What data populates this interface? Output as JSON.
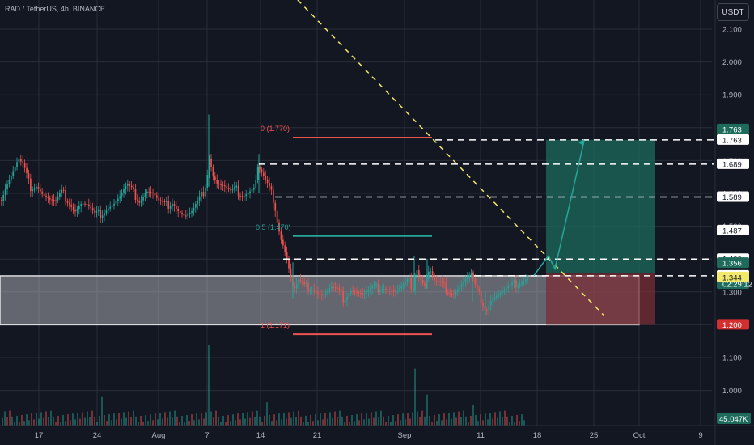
{
  "header": {
    "symbol": "RAD / TetherUS, 4h, BINANCE",
    "currency": "USDT"
  },
  "colors": {
    "background": "#131722",
    "grid": "#2a2e39",
    "up": "#26a69a",
    "down": "#ef5350",
    "zone": "#d1d4dc",
    "trend": "#f2e86b",
    "target": "#1e6b5c",
    "stop": "#7a2d36"
  },
  "chart_data": {
    "type": "candlestick",
    "y_range": [
      0.95,
      2.16
    ],
    "y_ticks": [
      "2.100",
      "2.000",
      "1.900",
      "1.800",
      "1.700",
      "1.600",
      "1.500",
      "1.400",
      "1.300",
      "1.200",
      "1.100",
      "1.000"
    ],
    "y_tick_values": [
      2.1,
      2.0,
      1.9,
      1.8,
      1.7,
      1.6,
      1.5,
      1.4,
      1.3,
      1.2,
      1.1,
      1.0
    ],
    "x_labels": [
      "17",
      "24",
      "Aug",
      "7",
      "14",
      "21",
      "Sep",
      "11",
      "18",
      "25",
      "Oct",
      "9"
    ],
    "price_path": [
      [
        0,
        1.58
      ],
      [
        6,
        1.62
      ],
      [
        14,
        1.66
      ],
      [
        22,
        1.7
      ],
      [
        28,
        1.68
      ],
      [
        36,
        1.62
      ],
      [
        44,
        1.63
      ],
      [
        52,
        1.6
      ],
      [
        60,
        1.58
      ],
      [
        68,
        1.57
      ],
      [
        76,
        1.6
      ],
      [
        84,
        1.58
      ],
      [
        92,
        1.55
      ],
      [
        100,
        1.57
      ],
      [
        108,
        1.56
      ],
      [
        116,
        1.53
      ],
      [
        124,
        1.54
      ],
      [
        132,
        1.56
      ],
      [
        140,
        1.57
      ],
      [
        148,
        1.59
      ],
      [
        156,
        1.62
      ],
      [
        164,
        1.6
      ],
      [
        172,
        1.58
      ],
      [
        180,
        1.61
      ],
      [
        188,
        1.6
      ],
      [
        196,
        1.57
      ],
      [
        204,
        1.56
      ],
      [
        212,
        1.58
      ],
      [
        220,
        1.55
      ],
      [
        228,
        1.53
      ],
      [
        236,
        1.54
      ],
      [
        244,
        1.57
      ],
      [
        250,
        1.6
      ],
      [
        254,
        1.64
      ],
      [
        258,
        1.72
      ],
      [
        262,
        1.66
      ],
      [
        268,
        1.63
      ],
      [
        276,
        1.62
      ],
      [
        284,
        1.6
      ],
      [
        292,
        1.61
      ],
      [
        300,
        1.6
      ],
      [
        308,
        1.61
      ],
      [
        314,
        1.62
      ],
      [
        318,
        1.68
      ],
      [
        322,
        1.66
      ],
      [
        328,
        1.63
      ],
      [
        334,
        1.6
      ],
      [
        338,
        1.58
      ],
      [
        342,
        1.52
      ],
      [
        346,
        1.47
      ],
      [
        350,
        1.44
      ],
      [
        354,
        1.4
      ],
      [
        358,
        1.35
      ],
      [
        362,
        1.3
      ],
      [
        368,
        1.33
      ],
      [
        376,
        1.31
      ],
      [
        384,
        1.32
      ],
      [
        392,
        1.3
      ],
      [
        400,
        1.29
      ],
      [
        408,
        1.31
      ],
      [
        416,
        1.3
      ],
      [
        424,
        1.28
      ],
      [
        432,
        1.31
      ],
      [
        440,
        1.3
      ],
      [
        448,
        1.29
      ],
      [
        456,
        1.3
      ],
      [
        464,
        1.31
      ],
      [
        472,
        1.32
      ],
      [
        480,
        1.31
      ],
      [
        488,
        1.3
      ],
      [
        496,
        1.31
      ],
      [
        504,
        1.33
      ],
      [
        510,
        1.32
      ],
      [
        514,
        1.38
      ],
      [
        518,
        1.35
      ],
      [
        524,
        1.32
      ],
      [
        530,
        1.37
      ],
      [
        536,
        1.33
      ],
      [
        544,
        1.32
      ],
      [
        552,
        1.31
      ],
      [
        560,
        1.3
      ],
      [
        568,
        1.32
      ],
      [
        576,
        1.34
      ],
      [
        582,
        1.35
      ],
      [
        588,
        1.3
      ],
      [
        594,
        1.28
      ],
      [
        600,
        1.25
      ],
      [
        606,
        1.28
      ],
      [
        614,
        1.29
      ],
      [
        622,
        1.3
      ],
      [
        630,
        1.31
      ],
      [
        638,
        1.33
      ],
      [
        646,
        1.34
      ],
      [
        652,
        1.344
      ]
    ],
    "wick_spikes": [
      [
        258,
        1.84,
        1.62
      ],
      [
        320,
        1.72,
        1.6
      ],
      [
        512,
        1.41,
        1.3
      ],
      [
        528,
        1.4,
        1.31
      ],
      [
        584,
        1.36,
        1.27
      ],
      [
        600,
        1.3,
        1.23
      ],
      [
        362,
        1.39,
        1.28
      ]
    ],
    "volume_spikes": [
      [
        258,
        0.62
      ],
      [
        512,
        0.44
      ],
      [
        124,
        0.22
      ],
      [
        330,
        0.18
      ],
      [
        584,
        0.16
      ],
      [
        526,
        0.24
      ]
    ],
    "fib_levels": [
      {
        "label": "0 (1.770)",
        "price": 1.77
      },
      {
        "label": "0.5 (1.470)",
        "price": 1.47
      },
      {
        "label": "1 (1.171)",
        "price": 1.171
      }
    ],
    "dashed_levels": [
      1.763,
      1.689,
      1.589,
      1.4,
      1.349
    ],
    "zone": {
      "top": 1.349,
      "bottom": 1.2
    },
    "target": 1.763,
    "entry": 1.356,
    "stop": 1.2
  },
  "price_badges": [
    {
      "text": "1.763",
      "bg": "#1e6b5c",
      "fg": "#ffffff",
      "price": 1.763,
      "offset": -1
    },
    {
      "text": "1.763",
      "bg": "#ffffff",
      "fg": "#131722",
      "price": 1.763,
      "offset": 0
    },
    {
      "text": "1.689",
      "bg": "#ffffff",
      "fg": "#131722",
      "price": 1.689,
      "offset": 0
    },
    {
      "text": "1.589",
      "bg": "#ffffff",
      "fg": "#131722",
      "price": 1.589,
      "offset": 0
    },
    {
      "text": "1.487",
      "bg": "#ffffff",
      "fg": "#131722",
      "price": 1.487,
      "offset": 0
    },
    {
      "text": "1.400",
      "bg": "#ffffff",
      "fg": "#131722",
      "price": 1.4,
      "offset": 0
    },
    {
      "text": "1.356",
      "bg": "#1e6b5c",
      "fg": "#ffffff",
      "price": 1.356,
      "offset": -1
    },
    {
      "text": "02:29:12",
      "bg": "#1e6b5c",
      "fg": "#ffffff",
      "price": 1.356,
      "offset": 1
    },
    {
      "text": "1.349",
      "bg": "#ffffff",
      "fg": "#131722",
      "price": 1.349,
      "offset": 0
    },
    {
      "text": "1.344",
      "bg": "#f2e86b",
      "fg": "#131722",
      "price": 1.344,
      "offset": 0
    },
    {
      "text": "1.200",
      "bg": "#d32f2f",
      "fg": "#ffffff",
      "price": 1.2,
      "offset": 0
    }
  ],
  "volume": {
    "label": "45.047K"
  }
}
